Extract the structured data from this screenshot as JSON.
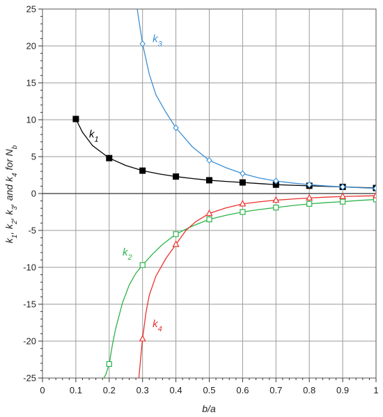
{
  "chart_data": {
    "type": "line",
    "xlabel": "b/a",
    "ylabel": "k1, k2, k3, and k4  for Nb",
    "xlim": [
      0,
      1
    ],
    "ylim": [
      -25,
      25
    ],
    "x_ticks": [
      0,
      0.1,
      0.2,
      0.3,
      0.4,
      0.5,
      0.6,
      0.7,
      0.8,
      0.9,
      1
    ],
    "x_tick_labels": [
      "0",
      "0.1",
      "0.2",
      "0.3",
      "0.4",
      "0.5",
      "0.6",
      "0.7",
      "0.8",
      "0.9",
      "1"
    ],
    "y_ticks": [
      -25,
      -20,
      -15,
      -10,
      -5,
      0,
      5,
      10,
      15,
      20,
      25
    ],
    "y_tick_labels": [
      "-25",
      "-20",
      "-15",
      "-10",
      "-5",
      "0",
      "5",
      "10",
      "15",
      "20",
      "25"
    ],
    "grid": true,
    "series": [
      {
        "name": "k1",
        "label_main": "k",
        "label_sub": "1",
        "color": "#000000",
        "marker": "filled-square",
        "points": [
          [
            0.1,
            10.1
          ],
          [
            0.2,
            4.8
          ],
          [
            0.3,
            3.1
          ],
          [
            0.4,
            2.3
          ],
          [
            0.5,
            1.8
          ],
          [
            0.6,
            1.5
          ],
          [
            0.7,
            1.2
          ],
          [
            0.8,
            1.05
          ],
          [
            0.9,
            0.9
          ],
          [
            1.0,
            0.75
          ]
        ],
        "curve": [
          [
            0.1,
            10.1
          ],
          [
            0.12,
            8.3
          ],
          [
            0.15,
            6.5
          ],
          [
            0.2,
            4.8
          ],
          [
            0.25,
            3.8
          ],
          [
            0.3,
            3.1
          ],
          [
            0.35,
            2.65
          ],
          [
            0.4,
            2.3
          ],
          [
            0.45,
            2.03
          ],
          [
            0.5,
            1.8
          ],
          [
            0.55,
            1.64
          ],
          [
            0.6,
            1.5
          ],
          [
            0.65,
            1.35
          ],
          [
            0.7,
            1.2
          ],
          [
            0.75,
            1.12
          ],
          [
            0.8,
            1.05
          ],
          [
            0.85,
            0.97
          ],
          [
            0.9,
            0.9
          ],
          [
            0.95,
            0.82
          ],
          [
            1.0,
            0.75
          ]
        ]
      },
      {
        "name": "k2",
        "label_main": "k",
        "label_sub": "2",
        "color": "#2bb34a",
        "marker": "open-square",
        "points": [
          [
            0.2,
            -23.1
          ],
          [
            0.3,
            -9.7
          ],
          [
            0.4,
            -5.5
          ],
          [
            0.5,
            -3.5
          ],
          [
            0.6,
            -2.5
          ],
          [
            0.7,
            -1.9
          ],
          [
            0.8,
            -1.4
          ],
          [
            0.9,
            -1.1
          ],
          [
            1.0,
            -0.8
          ]
        ],
        "curve": [
          [
            0.184,
            -25
          ],
          [
            0.19,
            -24.5
          ],
          [
            0.2,
            -23.1
          ],
          [
            0.21,
            -20.4
          ],
          [
            0.22,
            -18.2
          ],
          [
            0.24,
            -14.8
          ],
          [
            0.26,
            -12.4
          ],
          [
            0.28,
            -10.8
          ],
          [
            0.3,
            -9.7
          ],
          [
            0.33,
            -8.2
          ],
          [
            0.36,
            -6.9
          ],
          [
            0.4,
            -5.5
          ],
          [
            0.45,
            -4.4
          ],
          [
            0.5,
            -3.5
          ],
          [
            0.55,
            -2.95
          ],
          [
            0.6,
            -2.5
          ],
          [
            0.65,
            -2.17
          ],
          [
            0.7,
            -1.9
          ],
          [
            0.75,
            -1.63
          ],
          [
            0.8,
            -1.4
          ],
          [
            0.85,
            -1.23
          ],
          [
            0.9,
            -1.1
          ],
          [
            0.95,
            -0.94
          ],
          [
            1.0,
            -0.8
          ]
        ]
      },
      {
        "name": "k3",
        "label_main": "k",
        "label_sub": "3",
        "color": "#3c8fd4",
        "marker": "open-diamond",
        "points": [
          [
            0.3,
            20.3
          ],
          [
            0.4,
            8.9
          ],
          [
            0.5,
            4.5
          ],
          [
            0.6,
            2.7
          ],
          [
            0.7,
            1.7
          ],
          [
            0.8,
            1.2
          ],
          [
            0.9,
            0.9
          ],
          [
            1.0,
            0.7
          ]
        ],
        "curve": [
          [
            0.284,
            25
          ],
          [
            0.29,
            23.2
          ],
          [
            0.3,
            20.3
          ],
          [
            0.32,
            16.2
          ],
          [
            0.34,
            13.4
          ],
          [
            0.37,
            11.0
          ],
          [
            0.4,
            8.9
          ],
          [
            0.45,
            6.3
          ],
          [
            0.5,
            4.5
          ],
          [
            0.55,
            3.5
          ],
          [
            0.6,
            2.7
          ],
          [
            0.65,
            2.1
          ],
          [
            0.7,
            1.7
          ],
          [
            0.75,
            1.42
          ],
          [
            0.8,
            1.2
          ],
          [
            0.85,
            1.03
          ],
          [
            0.9,
            0.9
          ],
          [
            0.95,
            0.79
          ],
          [
            1.0,
            0.7
          ]
        ]
      },
      {
        "name": "k4",
        "label_main": "k",
        "label_sub": "4",
        "color": "#e8322c",
        "marker": "open-triangle",
        "points": [
          [
            0.3,
            -19.7
          ],
          [
            0.4,
            -6.9
          ],
          [
            0.5,
            -2.7
          ],
          [
            0.6,
            -1.4
          ],
          [
            0.7,
            -0.9
          ],
          [
            0.8,
            -0.6
          ],
          [
            0.9,
            -0.4
          ],
          [
            1.0,
            -0.3
          ]
        ],
        "curve": [
          [
            0.289,
            -25
          ],
          [
            0.295,
            -22.0
          ],
          [
            0.3,
            -19.7
          ],
          [
            0.31,
            -16.2
          ],
          [
            0.32,
            -13.8
          ],
          [
            0.34,
            -11.2
          ],
          [
            0.37,
            -8.8
          ],
          [
            0.4,
            -6.9
          ],
          [
            0.43,
            -5.0
          ],
          [
            0.46,
            -3.8
          ],
          [
            0.5,
            -2.7
          ],
          [
            0.55,
            -1.95
          ],
          [
            0.6,
            -1.4
          ],
          [
            0.65,
            -1.12
          ],
          [
            0.7,
            -0.9
          ],
          [
            0.75,
            -0.74
          ],
          [
            0.8,
            -0.6
          ],
          [
            0.85,
            -0.49
          ],
          [
            0.9,
            -0.4
          ],
          [
            0.95,
            -0.35
          ],
          [
            1.0,
            -0.3
          ]
        ]
      }
    ]
  }
}
